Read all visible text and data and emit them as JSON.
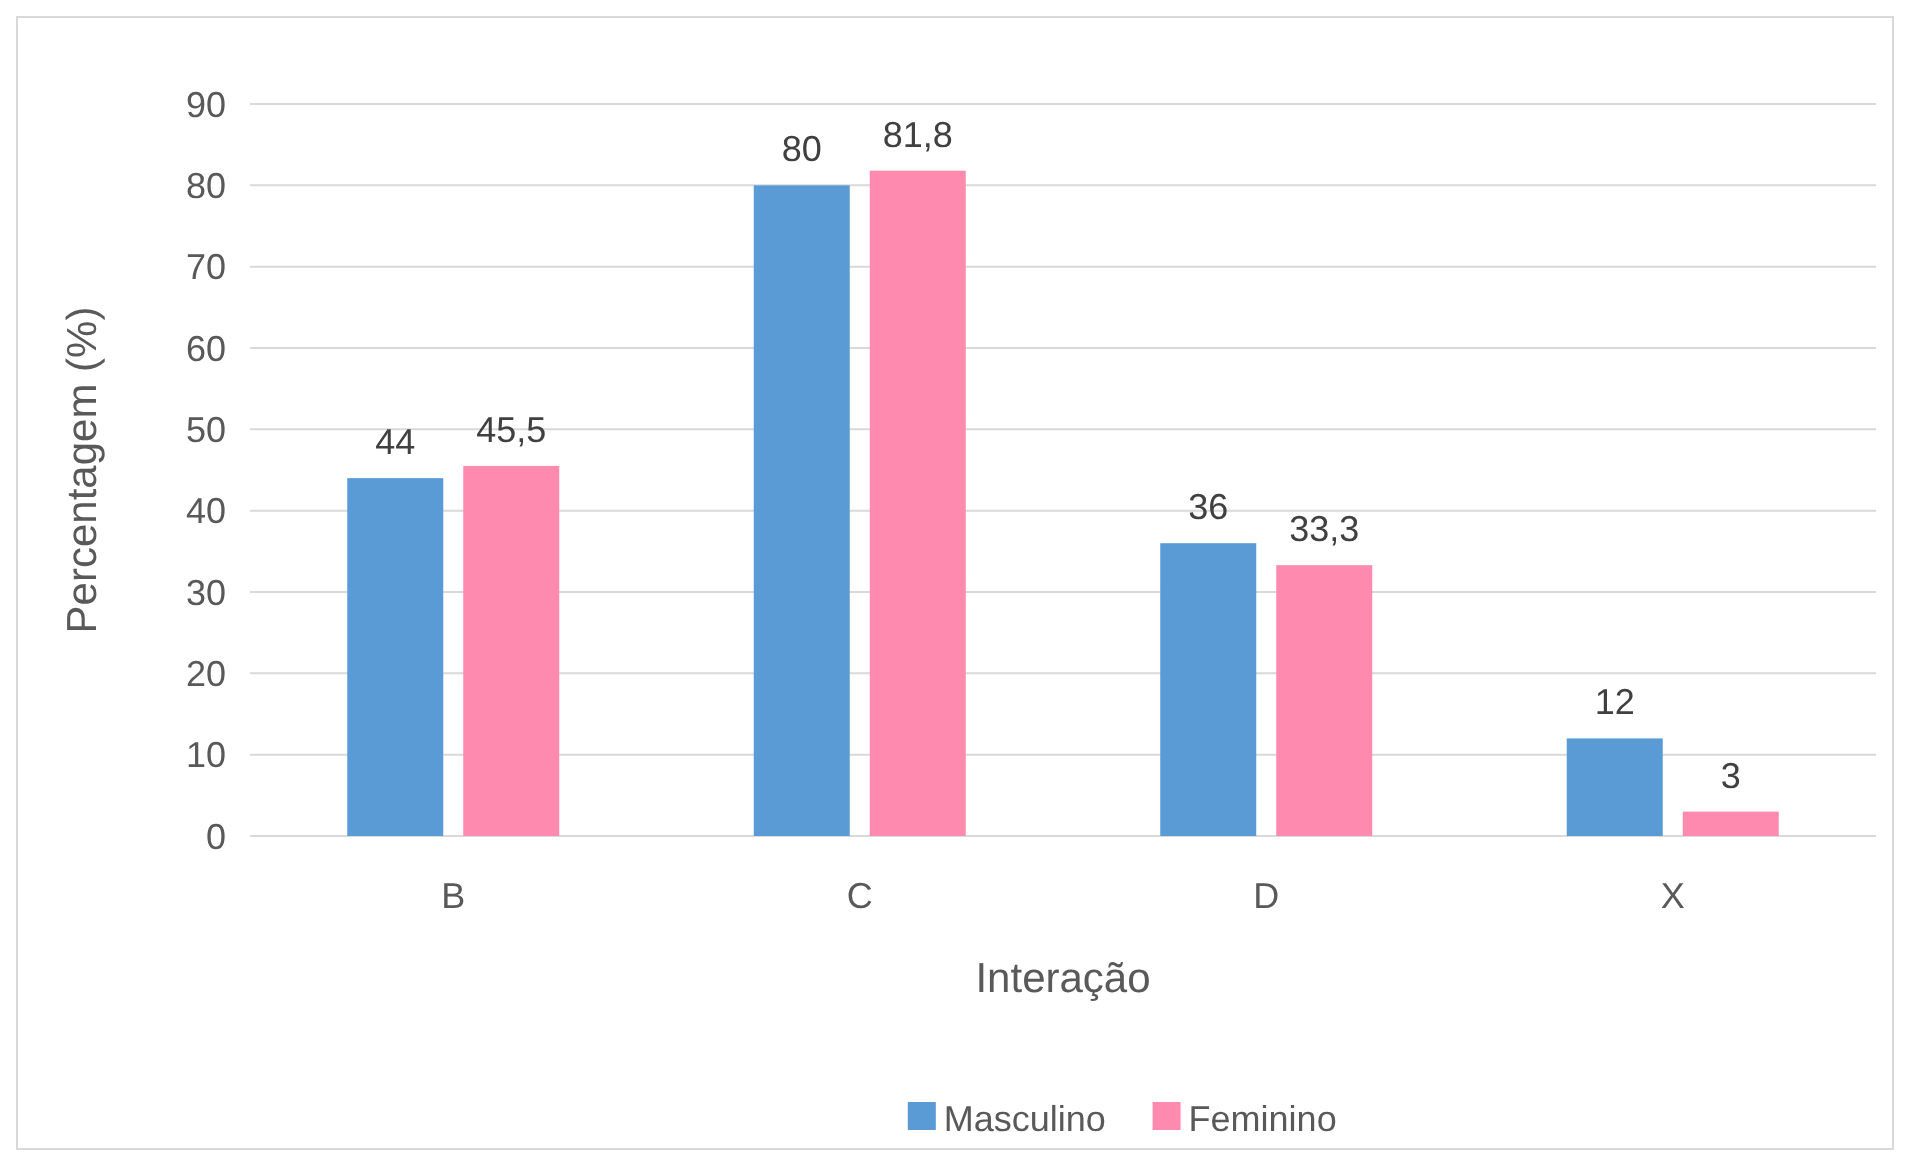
{
  "chart_data": {
    "type": "bar",
    "xlabel": "Interação",
    "ylabel": "Percentagem (%)",
    "categories": [
      "B",
      "C",
      "D",
      "X"
    ],
    "series": [
      {
        "name": "Masculino",
        "color": "#5b9bd5",
        "values": [
          44,
          80,
          36,
          12
        ],
        "value_labels": [
          "44",
          "80",
          "36",
          "12"
        ]
      },
      {
        "name": "Feminino",
        "color": "#ff8ab0",
        "values": [
          45.5,
          81.8,
          33.3,
          3
        ],
        "value_labels": [
          "45,5",
          "81,8",
          "33,3",
          "3"
        ]
      }
    ],
    "ylim": [
      0,
      90
    ],
    "yticks": [
      0,
      10,
      20,
      30,
      40,
      50,
      60,
      70,
      80,
      90
    ],
    "grid": "y",
    "legend": "bottom"
  }
}
